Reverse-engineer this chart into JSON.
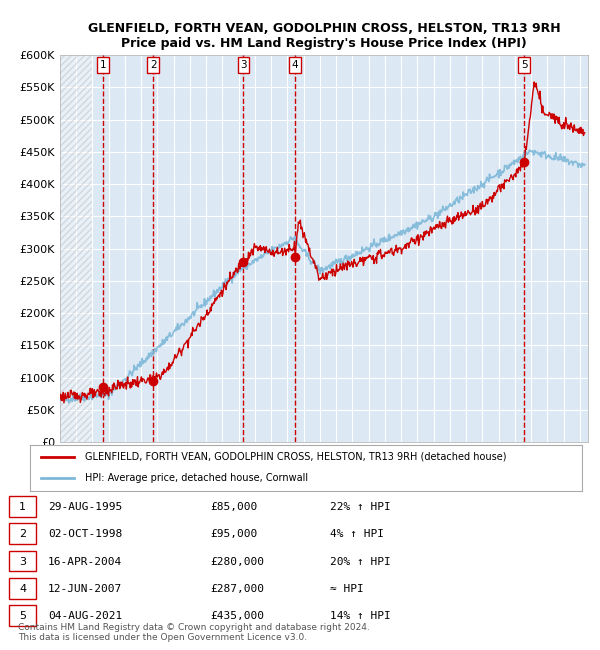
{
  "title": "GLENFIELD, FORTH VEAN, GODOLPHIN CROSS, HELSTON, TR13 9RH",
  "subtitle": "Price paid vs. HM Land Registry's House Price Index (HPI)",
  "xlabel": "",
  "ylabel": "",
  "ylim": [
    0,
    600000
  ],
  "yticks": [
    0,
    50000,
    100000,
    150000,
    200000,
    250000,
    300000,
    350000,
    400000,
    450000,
    500000,
    550000,
    600000
  ],
  "ytick_labels": [
    "£0",
    "£50K",
    "£100K",
    "£150K",
    "£200K",
    "£250K",
    "£300K",
    "£350K",
    "£400K",
    "£450K",
    "£500K",
    "£550K",
    "£600K"
  ],
  "xlim_start": 1993.0,
  "xlim_end": 2025.5,
  "background_color": "#dce9f5",
  "plot_bg_color": "#dce9f5",
  "grid_color": "#ffffff",
  "hpi_line_color": "#7eb8d9",
  "price_line_color": "#cc0000",
  "sale_marker_color": "#cc0000",
  "dashed_line_color": "#cc0000",
  "sale_band_color": "#dce9f5",
  "transactions": [
    {
      "label": "1",
      "year": 1995.664,
      "price": 85000,
      "date": "29-AUG-1995",
      "pct": "22%",
      "dir": "↑"
    },
    {
      "label": "2",
      "year": 1998.748,
      "price": 95000,
      "date": "02-OCT-1998",
      "pct": "4%",
      "dir": "↑"
    },
    {
      "label": "3",
      "year": 2004.292,
      "price": 280000,
      "date": "16-APR-2004",
      "pct": "20%",
      "dir": "↑"
    },
    {
      "label": "4",
      "year": 2007.44,
      "price": 287000,
      "date": "12-JUN-2007",
      "pct": "≈",
      "dir": ""
    },
    {
      "label": "5",
      "year": 2021.585,
      "price": 435000,
      "date": "04-AUG-2021",
      "pct": "14%",
      "dir": "↑"
    }
  ],
  "legend_price_label": "GLENFIELD, FORTH VEAN, GODOLPHIN CROSS, HELSTON, TR13 9RH (detached house)",
  "legend_hpi_label": "HPI: Average price, detached house, Cornwall",
  "footer": "Contains HM Land Registry data © Crown copyright and database right 2024.\nThis data is licensed under the Open Government Licence v3.0.",
  "table_rows": [
    [
      "1",
      "29-AUG-1995",
      "£85,000",
      "22% ↑ HPI"
    ],
    [
      "2",
      "02-OCT-1998",
      "£95,000",
      "4% ↑ HPI"
    ],
    [
      "3",
      "16-APR-2004",
      "£280,000",
      "20% ↑ HPI"
    ],
    [
      "4",
      "12-JUN-2007",
      "£287,000",
      "≈ HPI"
    ],
    [
      "5",
      "04-AUG-2021",
      "£435,000",
      "14% ↑ HPI"
    ]
  ]
}
